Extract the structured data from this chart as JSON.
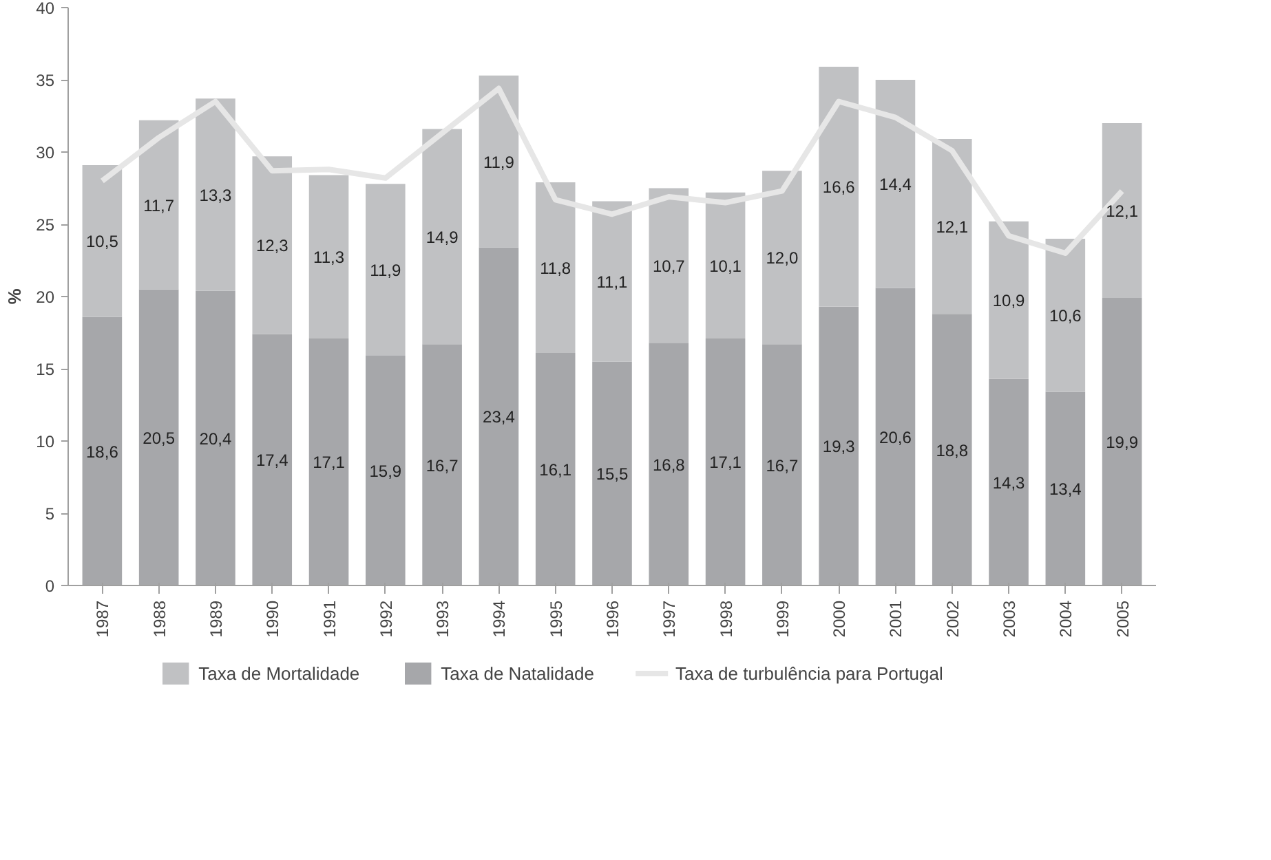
{
  "chart_data": {
    "type": "bar",
    "stacked": true,
    "ylabel": "%",
    "categories": [
      "1987",
      "1988",
      "1989",
      "1990",
      "1991",
      "1992",
      "1993",
      "1994",
      "1995",
      "1996",
      "1997",
      "1998",
      "1999",
      "2000",
      "2001",
      "2002",
      "2003",
      "2004",
      "2005"
    ],
    "series": [
      {
        "name": "Taxa de Natalidade",
        "color": "#a6a7aa",
        "values": [
          18.6,
          20.5,
          20.4,
          17.4,
          17.1,
          15.9,
          16.7,
          23.4,
          16.1,
          15.5,
          16.8,
          17.1,
          16.7,
          19.3,
          20.6,
          18.8,
          14.3,
          13.4,
          19.9
        ],
        "value_labels": [
          "18,6",
          "20,5",
          "20,4",
          "17,4",
          "17,1",
          "15,9",
          "16,7",
          "23,4",
          "16,1",
          "15,5",
          "16,8",
          "17,1",
          "16,7",
          "19,3",
          "20,6",
          "18,8",
          "14,3",
          "13,4",
          "19,9"
        ]
      },
      {
        "name": "Taxa de Mortalidade",
        "color": "#c0c1c3",
        "values": [
          10.5,
          11.7,
          13.3,
          12.3,
          11.3,
          11.9,
          14.9,
          11.9,
          11.8,
          11.1,
          10.7,
          10.1,
          12.0,
          16.6,
          14.4,
          12.1,
          10.9,
          10.6,
          12.1
        ],
        "value_labels": [
          "10,5",
          "11,7",
          "13,3",
          "12,3",
          "11,3",
          "11,9",
          "14,9",
          "11,9",
          "11,8",
          "11,1",
          "10,7",
          "10,1",
          "12,0",
          "16,6",
          "14,4",
          "12,1",
          "10,9",
          "10,6",
          "12,1"
        ]
      },
      {
        "name": "Taxa de turbulência para Portugal",
        "type": "line",
        "color": "#e6e6e6",
        "values": [
          28.0,
          31.0,
          33.5,
          28.7,
          28.8,
          28.2,
          31.3,
          34.4,
          26.7,
          25.7,
          26.9,
          26.5,
          27.3,
          33.5,
          32.4,
          30.1,
          24.2,
          23.0,
          27.3
        ]
      }
    ],
    "ylim": [
      0,
      40
    ],
    "yticks": [
      0,
      5,
      10,
      15,
      20,
      25,
      30,
      35,
      40
    ],
    "grid": false,
    "legend": "bottom",
    "marker": "none",
    "line_style": "solid"
  }
}
